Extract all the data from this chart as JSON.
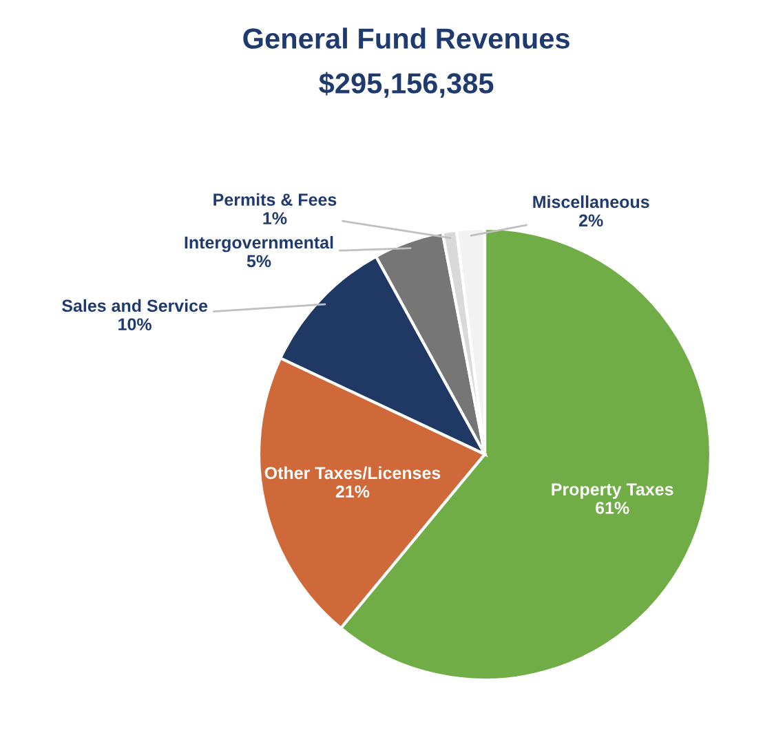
{
  "chart_data": {
    "type": "pie",
    "title": "General Fund Revenues",
    "subtitle": "$295,156,385",
    "categories": [
      "Property Taxes",
      "Other Taxes/Licenses",
      "Sales and Service",
      "Intergovernmental",
      "Permits & Fees",
      "Miscellaneous"
    ],
    "values": [
      61,
      21,
      10,
      5,
      1,
      2
    ],
    "value_labels": [
      "61%",
      "21%",
      "10%",
      "5%",
      "1%",
      "2%"
    ],
    "colors": [
      "#70ad47",
      "#d0693a",
      "#1f3864",
      "#767676",
      "#d9d9d9",
      "#f2f2f2"
    ],
    "legend": false
  }
}
